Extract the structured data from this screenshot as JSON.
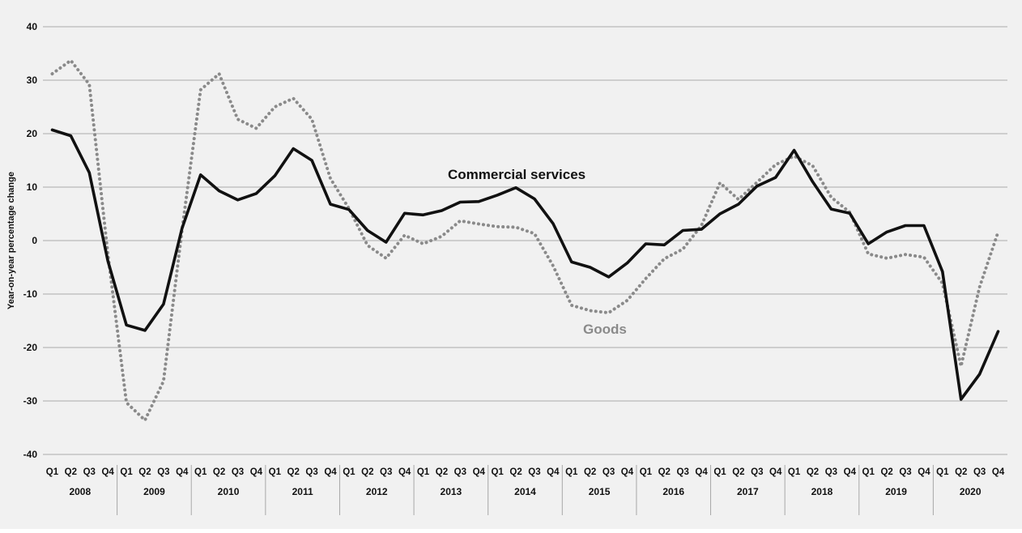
{
  "chart_data": {
    "type": "line",
    "ylabel": "Year-on-year percentage change",
    "xlabel": "",
    "ylim": [
      -40,
      40
    ],
    "yticks": [
      -40,
      -30,
      -20,
      -10,
      0,
      10,
      20,
      30,
      40
    ],
    "grid": true,
    "quarter_labels": [
      "Q1",
      "Q2",
      "Q3",
      "Q4"
    ],
    "years": [
      "2008",
      "2009",
      "2010",
      "2011",
      "2012",
      "2013",
      "2014",
      "2015",
      "2016",
      "2017",
      "2018",
      "2019",
      "2020"
    ],
    "series": [
      {
        "name": "Commercial services",
        "color": "#111111",
        "style": "solid",
        "values": [
          20.7,
          19.6,
          12.7,
          -3.8,
          -15.8,
          -16.8,
          -11.9,
          2.3,
          12.3,
          9.3,
          7.6,
          8.8,
          12.1,
          17.2,
          15.0,
          6.8,
          5.8,
          1.9,
          -0.3,
          5.1,
          4.8,
          5.6,
          7.2,
          7.3,
          8.5,
          9.9,
          7.8,
          3.2,
          -4.0,
          -5.0,
          -6.8,
          -4.2,
          -0.6,
          -0.8,
          1.9,
          2.1,
          5.0,
          6.8,
          10.2,
          11.8,
          16.9,
          11.0,
          5.9,
          5.1,
          -0.6,
          1.6,
          2.8,
          2.8,
          -5.8,
          -29.7,
          -25.0,
          -17.0
        ]
      },
      {
        "name": "Goods",
        "color": "#8a8a8a",
        "style": "dotted",
        "values": [
          31.2,
          33.7,
          29.2,
          -2.5,
          -30.3,
          -33.6,
          -26.3,
          2.0,
          28.2,
          31.2,
          22.7,
          21.0,
          25.0,
          26.6,
          22.7,
          11.6,
          6.0,
          -0.9,
          -3.3,
          1.0,
          -0.6,
          0.8,
          3.7,
          3.1,
          2.6,
          2.5,
          1.3,
          -4.7,
          -12.1,
          -13.1,
          -13.5,
          -11.2,
          -7.1,
          -3.4,
          -1.6,
          2.8,
          10.8,
          7.7,
          10.9,
          14.2,
          15.8,
          14.0,
          8.1,
          5.3,
          -2.5,
          -3.3,
          -2.6,
          -3.1,
          -8.0,
          -23.5,
          -8.7,
          1.6
        ]
      }
    ]
  }
}
